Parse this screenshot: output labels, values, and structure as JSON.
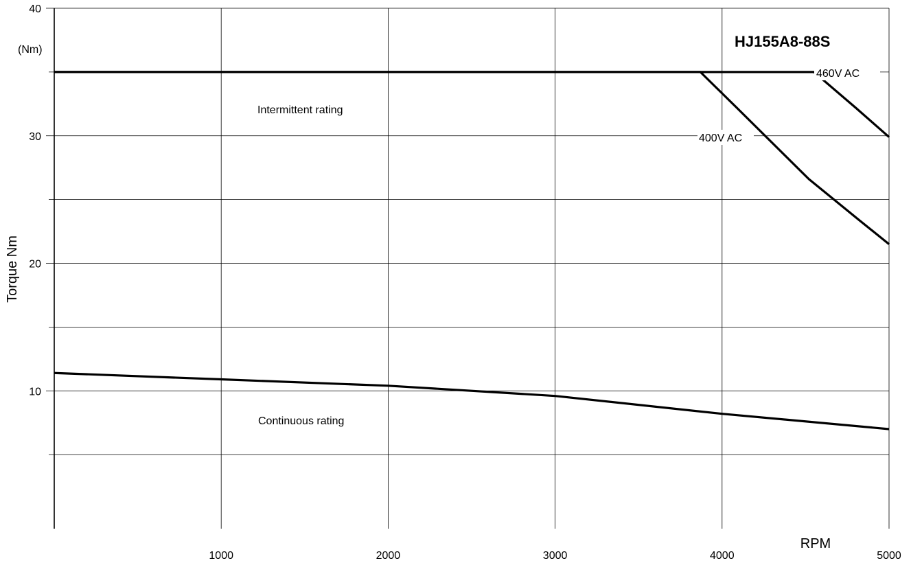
{
  "chart_data": {
    "type": "line",
    "title": "HJ155A8-88S",
    "xlabel": "RPM",
    "ylabel": "Torque Nm",
    "yunit_label": "(Nm)",
    "xlim": [
      0,
      5000
    ],
    "ylim": [
      0,
      40
    ],
    "x_ticks": [
      "1000",
      "2000",
      "3000",
      "4000",
      "5000"
    ],
    "y_ticks": [
      "10",
      "20",
      "30",
      "40"
    ],
    "grid": true,
    "series": [
      {
        "name": "460V AC",
        "x": [
          0,
          4550,
          4800,
          5000
        ],
        "y": [
          35,
          35,
          32.2,
          29.9
        ]
      },
      {
        "name": "400V AC",
        "x": [
          0,
          3870,
          4080,
          4520,
          4820,
          5000
        ],
        "y": [
          35,
          35,
          32.3,
          26.6,
          23.4,
          21.5
        ]
      },
      {
        "name": "",
        "x": [
          0,
          1000,
          2000,
          3000,
          4000,
          5000
        ],
        "y": [
          11.4,
          10.9,
          10.4,
          9.6,
          8.2,
          7.0
        ]
      }
    ],
    "annotations": {
      "intermittent": "Intermittent rating",
      "continuous": "Continuous rating",
      "v460": "460V AC",
      "v400": "400V AC"
    }
  }
}
